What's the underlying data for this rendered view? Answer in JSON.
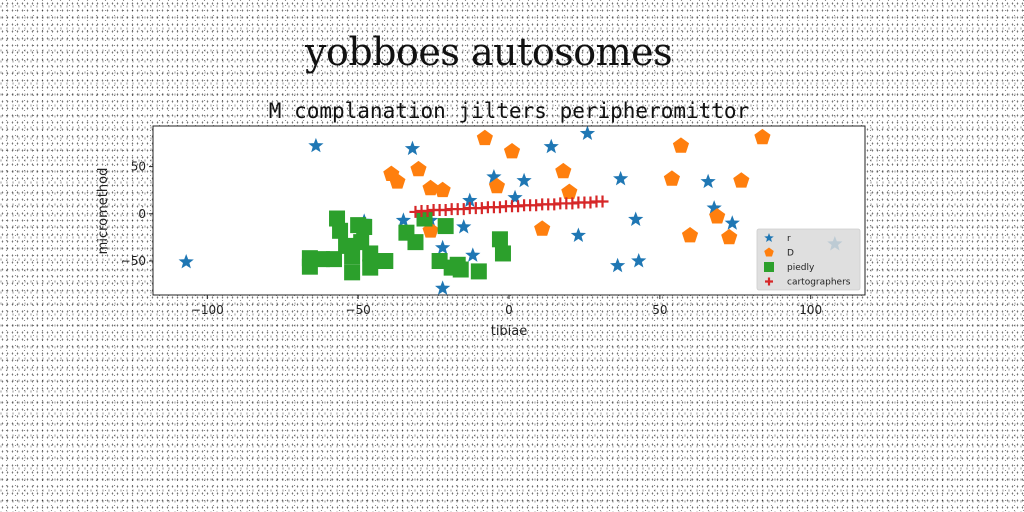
{
  "page": {
    "super_title": "yobboes autosomes"
  },
  "chart_data": {
    "type": "scatter",
    "title": "M complanation jilters peripheromittor",
    "xlabel": "tibiae",
    "ylabel": "micromethod",
    "xlim": [
      -118,
      118
    ],
    "ylim": [
      -86,
      93
    ],
    "xticks": [
      -100,
      -50,
      0,
      50,
      100
    ],
    "yticks": [
      -50,
      0,
      50
    ],
    "grid": false,
    "legend_position": "lower-right",
    "series": [
      {
        "name": "r",
        "marker": "star",
        "color": "#1f77b4",
        "points": [
          [
            -107,
            -51
          ],
          [
            -64,
            72
          ],
          [
            -48,
            -8
          ],
          [
            -35,
            -7
          ],
          [
            -32,
            69
          ],
          [
            -26,
            -7
          ],
          [
            -22,
            -36
          ],
          [
            -22,
            -79
          ],
          [
            -15,
            -14
          ],
          [
            -13,
            14
          ],
          [
            -12,
            -44
          ],
          [
            -5,
            39
          ],
          [
            2,
            17
          ],
          [
            5,
            35
          ],
          [
            14,
            71
          ],
          [
            26,
            85
          ],
          [
            23,
            -23
          ],
          [
            37,
            37
          ],
          [
            42,
            -6
          ],
          [
            36,
            -55
          ],
          [
            43,
            -50
          ],
          [
            66,
            34
          ],
          [
            68,
            6
          ],
          [
            74,
            -10
          ],
          [
            108,
            -32
          ]
        ]
      },
      {
        "name": "D",
        "marker": "pentagon",
        "color": "#ff7f0e",
        "points": [
          [
            -39,
            42
          ],
          [
            -37,
            34
          ],
          [
            -30,
            47
          ],
          [
            -26,
            27
          ],
          [
            -22,
            25
          ],
          [
            -26,
            -18
          ],
          [
            -8,
            80
          ],
          [
            -4,
            29
          ],
          [
            1,
            66
          ],
          [
            11,
            -16
          ],
          [
            18,
            45
          ],
          [
            20,
            23
          ],
          [
            54,
            37
          ],
          [
            57,
            72
          ],
          [
            60,
            -23
          ],
          [
            69,
            -3
          ],
          [
            73,
            -25
          ],
          [
            77,
            35
          ],
          [
            84,
            81
          ]
        ]
      },
      {
        "name": "piedly",
        "marker": "square",
        "color": "#2ca02c",
        "points": [
          [
            -66,
            -47
          ],
          [
            -66,
            -56
          ],
          [
            -62,
            -48
          ],
          [
            -58,
            -48
          ],
          [
            -57,
            -5
          ],
          [
            -56,
            -18
          ],
          [
            -54,
            -34
          ],
          [
            -52,
            -45
          ],
          [
            -52,
            -62
          ],
          [
            -50,
            -12
          ],
          [
            -49,
            -30
          ],
          [
            -48,
            -14
          ],
          [
            -46,
            -42
          ],
          [
            -46,
            -57
          ],
          [
            -41,
            -50
          ],
          [
            -34,
            -20
          ],
          [
            -31,
            -30
          ],
          [
            -28,
            -5
          ],
          [
            -23,
            -50
          ],
          [
            -21,
            -13
          ],
          [
            -19,
            -57
          ],
          [
            -17,
            -54
          ],
          [
            -16,
            -59
          ],
          [
            -10,
            -61
          ],
          [
            -3,
            -27
          ],
          [
            -2,
            -42
          ]
        ]
      },
      {
        "name": "cartographers",
        "marker": "plus",
        "color": "#d62728",
        "points": [
          [
            -31,
            2
          ],
          [
            -29,
            3
          ],
          [
            -27,
            3
          ],
          [
            -25,
            4
          ],
          [
            -23,
            4
          ],
          [
            -21,
            4
          ],
          [
            -19,
            5
          ],
          [
            -17,
            5
          ],
          [
            -15,
            5
          ],
          [
            -13,
            6
          ],
          [
            -11,
            6
          ],
          [
            -9,
            6
          ],
          [
            -7,
            7
          ],
          [
            -5,
            7
          ],
          [
            -3,
            7
          ],
          [
            -1,
            8
          ],
          [
            1,
            8
          ],
          [
            3,
            8
          ],
          [
            5,
            9
          ],
          [
            7,
            9
          ],
          [
            9,
            9
          ],
          [
            11,
            10
          ],
          [
            13,
            10
          ],
          [
            15,
            10
          ],
          [
            17,
            11
          ],
          [
            19,
            11
          ],
          [
            21,
            11
          ],
          [
            23,
            12
          ],
          [
            25,
            12
          ],
          [
            27,
            12
          ],
          [
            29,
            13
          ],
          [
            31,
            13
          ]
        ]
      }
    ]
  }
}
